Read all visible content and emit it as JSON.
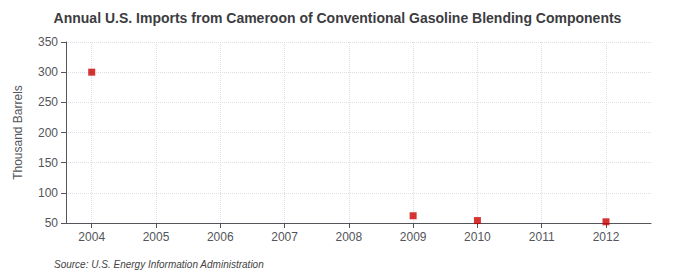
{
  "chart_data": {
    "type": "scatter",
    "title": "Annual U.S. Imports from Cameroon of Conventional Gasoline Blending Components",
    "ylabel": "Thousand Barrels",
    "annotation": "Source: U.S. Energy Information Administration",
    "x": [
      2004,
      2009,
      2010,
      2012
    ],
    "values": [
      300,
      62,
      54,
      52
    ],
    "color": "#cc0000",
    "marker": "square",
    "xlim": [
      2003.6,
      2012.7
    ],
    "xticks": [
      2004,
      2005,
      2006,
      2007,
      2008,
      2009,
      2010,
      2011,
      2012
    ],
    "ylim": [
      50,
      350
    ],
    "yticks": [
      50,
      100,
      150,
      200,
      250,
      300,
      350
    ],
    "grid": true
  }
}
